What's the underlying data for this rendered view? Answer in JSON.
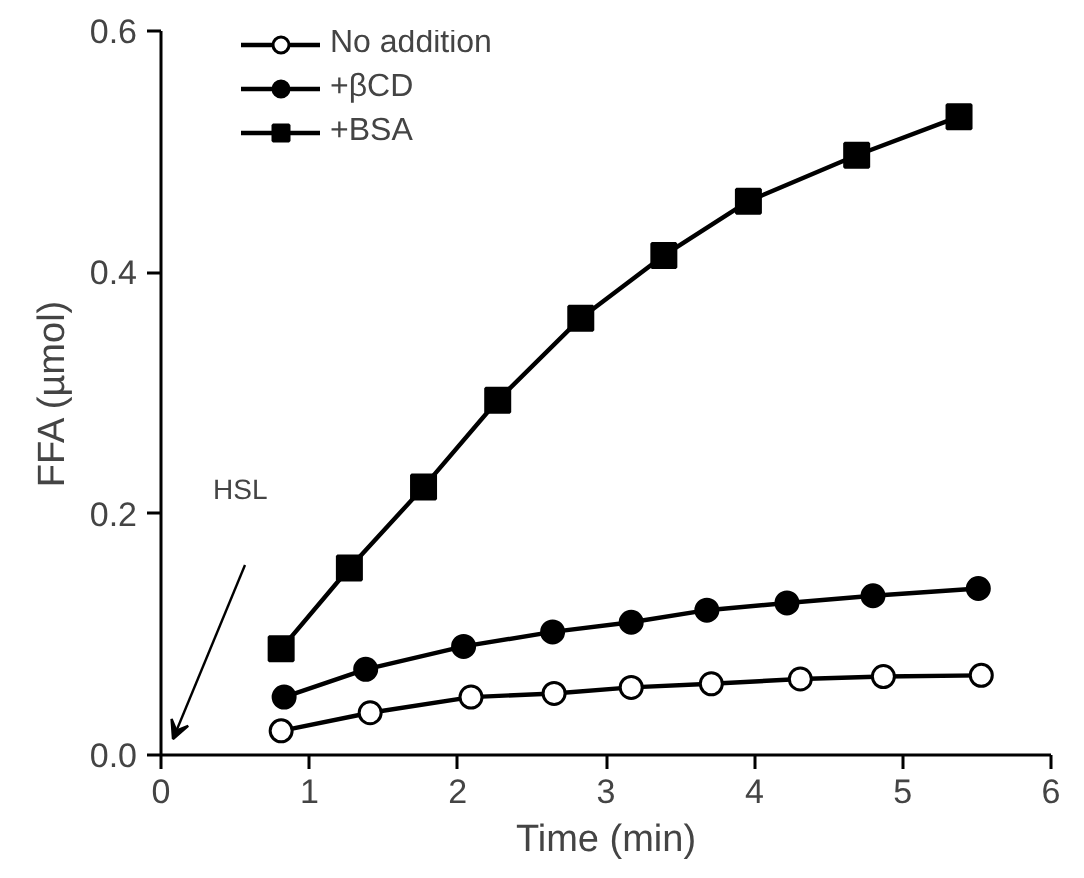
{
  "chart_data": {
    "type": "line",
    "xlabel": "Time (min)",
    "ylabel": "FFA (µmol)",
    "xlim": [
      0,
      6
    ],
    "xticks": [
      0,
      1,
      2,
      3,
      4,
      5,
      6
    ],
    "ylim": [
      0,
      0.6
    ],
    "yticks": [
      {
        "value": 0,
        "label": "0.0"
      },
      {
        "value": 0.2,
        "label": "0.2"
      },
      {
        "value": 0.4,
        "label": "0.4"
      },
      {
        "value": 0.6,
        "label": "0.6"
      }
    ],
    "grid": false,
    "legend": "top left",
    "line_style": "solid",
    "annotations": [
      "HSL"
    ],
    "series": [
      {
        "name": "No addition",
        "color": "#000000",
        "marker": "circle_open",
        "x": [
          0.81,
          1.41,
          2.09,
          2.65,
          3.17,
          3.71,
          4.31,
          4.87,
          5.53
        ],
        "values": [
          0.02,
          0.035,
          0.048,
          0.051,
          0.056,
          0.059,
          0.063,
          0.065,
          0.066
        ]
      },
      {
        "name": "+βCD",
        "color": "#000000",
        "marker": "circle",
        "x": [
          0.83,
          1.38,
          2.04,
          2.64,
          3.17,
          3.68,
          4.22,
          4.8,
          5.51
        ],
        "values": [
          0.048,
          0.071,
          0.09,
          0.102,
          0.11,
          0.12,
          0.126,
          0.132,
          0.138
        ]
      },
      {
        "name": "+BSA",
        "color": "#000000",
        "marker": "square",
        "x": [
          0.81,
          1.27,
          1.77,
          2.27,
          2.83,
          3.39,
          3.96,
          4.69,
          5.38
        ],
        "values": [
          0.088,
          0.155,
          0.222,
          0.294,
          0.362,
          0.414,
          0.459,
          0.497,
          0.529
        ]
      }
    ]
  }
}
